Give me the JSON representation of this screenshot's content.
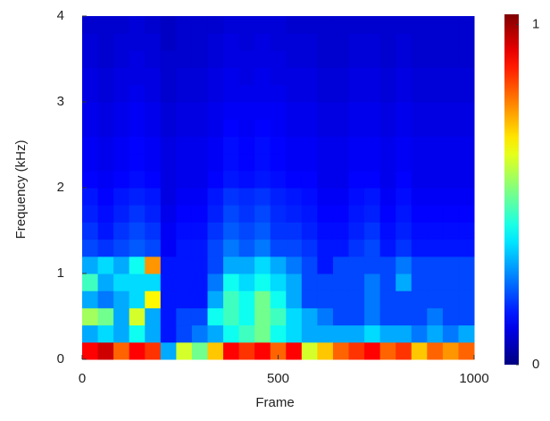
{
  "chart_data": {
    "type": "heatmap",
    "xlabel": "Frame",
    "ylabel": "Frequency (kHz)",
    "xbins": [
      0,
      40,
      80,
      120,
      160,
      200,
      240,
      280,
      320,
      360,
      400,
      440,
      480,
      520,
      560,
      600,
      640,
      680,
      720,
      760,
      800,
      840,
      880,
      920,
      960,
      1000
    ],
    "ybins": [
      0,
      0.2,
      0.4,
      0.6,
      0.8,
      1,
      1.2,
      1.4,
      1.6,
      1.8,
      2,
      2.2,
      2.4,
      2.6,
      2.8,
      3,
      3.2,
      3.4,
      3.6,
      3.8,
      4
    ],
    "z": [
      [
        0.9,
        0.95,
        0.8,
        0.9,
        0.85,
        0.3,
        0.6,
        0.5,
        0.7,
        0.9,
        0.85,
        0.9,
        0.8,
        0.9,
        0.6,
        0.7,
        0.8,
        0.85,
        0.9,
        0.8,
        0.85,
        0.7,
        0.8,
        0.75,
        0.8
      ],
      [
        0.3,
        0.35,
        0.3,
        0.4,
        0.3,
        0.15,
        0.2,
        0.25,
        0.3,
        0.4,
        0.45,
        0.5,
        0.4,
        0.35,
        0.3,
        0.3,
        0.3,
        0.3,
        0.35,
        0.3,
        0.3,
        0.25,
        0.3,
        0.25,
        0.3
      ],
      [
        0.55,
        0.5,
        0.3,
        0.6,
        0.3,
        0.15,
        0.2,
        0.2,
        0.4,
        0.45,
        0.4,
        0.5,
        0.45,
        0.35,
        0.3,
        0.25,
        0.2,
        0.2,
        0.25,
        0.2,
        0.2,
        0.2,
        0.25,
        0.2,
        0.2
      ],
      [
        0.3,
        0.25,
        0.3,
        0.35,
        0.65,
        0.15,
        0.15,
        0.15,
        0.3,
        0.45,
        0.4,
        0.5,
        0.4,
        0.3,
        0.2,
        0.2,
        0.2,
        0.2,
        0.25,
        0.2,
        0.2,
        0.2,
        0.2,
        0.2,
        0.2
      ],
      [
        0.45,
        0.3,
        0.35,
        0.35,
        0.35,
        0.15,
        0.15,
        0.15,
        0.25,
        0.4,
        0.35,
        0.4,
        0.35,
        0.3,
        0.2,
        0.2,
        0.2,
        0.2,
        0.25,
        0.2,
        0.3,
        0.2,
        0.2,
        0.2,
        0.2
      ],
      [
        0.3,
        0.35,
        0.3,
        0.4,
        0.75,
        0.15,
        0.15,
        0.15,
        0.2,
        0.3,
        0.3,
        0.35,
        0.3,
        0.25,
        0.2,
        0.15,
        0.2,
        0.2,
        0.2,
        0.2,
        0.25,
        0.2,
        0.2,
        0.2,
        0.2
      ],
      [
        0.2,
        0.18,
        0.2,
        0.22,
        0.2,
        0.12,
        0.15,
        0.15,
        0.2,
        0.25,
        0.22,
        0.25,
        0.2,
        0.2,
        0.18,
        0.15,
        0.15,
        0.18,
        0.2,
        0.15,
        0.18,
        0.15,
        0.15,
        0.15,
        0.15
      ],
      [
        0.18,
        0.15,
        0.18,
        0.2,
        0.18,
        0.12,
        0.14,
        0.14,
        0.18,
        0.22,
        0.2,
        0.22,
        0.18,
        0.18,
        0.16,
        0.14,
        0.14,
        0.16,
        0.18,
        0.14,
        0.16,
        0.14,
        0.14,
        0.14,
        0.14
      ],
      [
        0.16,
        0.14,
        0.16,
        0.18,
        0.16,
        0.11,
        0.13,
        0.13,
        0.16,
        0.2,
        0.18,
        0.2,
        0.17,
        0.16,
        0.15,
        0.13,
        0.13,
        0.15,
        0.16,
        0.13,
        0.15,
        0.13,
        0.13,
        0.13,
        0.13
      ],
      [
        0.15,
        0.13,
        0.15,
        0.16,
        0.15,
        0.1,
        0.12,
        0.12,
        0.15,
        0.18,
        0.17,
        0.18,
        0.16,
        0.15,
        0.14,
        0.12,
        0.12,
        0.14,
        0.15,
        0.12,
        0.14,
        0.12,
        0.12,
        0.12,
        0.12
      ],
      [
        0.13,
        0.12,
        0.13,
        0.14,
        0.13,
        0.1,
        0.11,
        0.11,
        0.13,
        0.15,
        0.14,
        0.15,
        0.14,
        0.13,
        0.13,
        0.11,
        0.11,
        0.13,
        0.13,
        0.11,
        0.13,
        0.11,
        0.11,
        0.11,
        0.11
      ],
      [
        0.12,
        0.11,
        0.12,
        0.13,
        0.12,
        0.1,
        0.11,
        0.11,
        0.12,
        0.14,
        0.13,
        0.14,
        0.13,
        0.12,
        0.12,
        0.11,
        0.11,
        0.12,
        0.12,
        0.11,
        0.12,
        0.11,
        0.11,
        0.11,
        0.11
      ],
      [
        0.12,
        0.11,
        0.12,
        0.13,
        0.12,
        0.1,
        0.11,
        0.11,
        0.12,
        0.14,
        0.13,
        0.14,
        0.13,
        0.12,
        0.12,
        0.11,
        0.11,
        0.12,
        0.12,
        0.11,
        0.12,
        0.11,
        0.11,
        0.11,
        0.11
      ],
      [
        0.11,
        0.1,
        0.11,
        0.12,
        0.11,
        0.09,
        0.1,
        0.1,
        0.11,
        0.13,
        0.12,
        0.13,
        0.12,
        0.11,
        0.11,
        0.1,
        0.1,
        0.11,
        0.11,
        0.1,
        0.11,
        0.1,
        0.1,
        0.1,
        0.1
      ],
      [
        0.11,
        0.1,
        0.11,
        0.12,
        0.11,
        0.09,
        0.1,
        0.1,
        0.11,
        0.12,
        0.12,
        0.12,
        0.12,
        0.11,
        0.11,
        0.1,
        0.1,
        0.11,
        0.11,
        0.1,
        0.11,
        0.1,
        0.1,
        0.1,
        0.1
      ],
      [
        0.1,
        0.09,
        0.1,
        0.11,
        0.1,
        0.08,
        0.09,
        0.09,
        0.1,
        0.11,
        0.11,
        0.11,
        0.11,
        0.1,
        0.1,
        0.09,
        0.09,
        0.1,
        0.1,
        0.09,
        0.1,
        0.09,
        0.09,
        0.09,
        0.09
      ],
      [
        0.1,
        0.09,
        0.1,
        0.1,
        0.1,
        0.08,
        0.09,
        0.09,
        0.1,
        0.11,
        0.1,
        0.11,
        0.1,
        0.1,
        0.1,
        0.09,
        0.09,
        0.1,
        0.1,
        0.09,
        0.1,
        0.09,
        0.09,
        0.09,
        0.09
      ],
      [
        0.09,
        0.08,
        0.09,
        0.1,
        0.09,
        0.08,
        0.08,
        0.08,
        0.09,
        0.1,
        0.1,
        0.1,
        0.1,
        0.09,
        0.09,
        0.08,
        0.08,
        0.09,
        0.09,
        0.08,
        0.09,
        0.08,
        0.08,
        0.08,
        0.08
      ],
      [
        0.09,
        0.08,
        0.09,
        0.09,
        0.09,
        0.07,
        0.08,
        0.08,
        0.09,
        0.1,
        0.09,
        0.1,
        0.09,
        0.09,
        0.09,
        0.08,
        0.08,
        0.09,
        0.09,
        0.08,
        0.09,
        0.08,
        0.08,
        0.08,
        0.08
      ],
      [
        0.08,
        0.08,
        0.08,
        0.09,
        0.08,
        0.07,
        0.08,
        0.08,
        0.08,
        0.09,
        0.09,
        0.09,
        0.09,
        0.08,
        0.08,
        0.08,
        0.08,
        0.08,
        0.08,
        0.08,
        0.08,
        0.08,
        0.08,
        0.08,
        0.08
      ]
    ],
    "xlim": [
      0,
      1000
    ],
    "ylim": [
      0,
      4
    ],
    "xticks": [
      0,
      500,
      1000
    ],
    "yticks": [
      0,
      1,
      2,
      3,
      4
    ],
    "clim": [
      0,
      1.03
    ],
    "cticks": [
      0,
      1
    ],
    "colormap": "jet"
  }
}
